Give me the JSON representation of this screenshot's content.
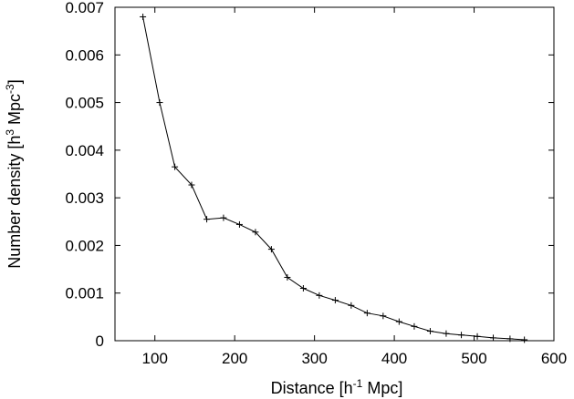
{
  "chart_data": {
    "type": "line",
    "title": "",
    "xlabel": {
      "pre": "Distance [h",
      "sup": "-1",
      "post": " Mpc]"
    },
    "ylabel": {
      "pre": "Number density [h",
      "sup1": "3",
      "mid": " Mpc",
      "sup2": "-3",
      "post": "]"
    },
    "xlim": [
      50,
      600
    ],
    "ylim": [
      0,
      0.007
    ],
    "xticks": [
      100,
      200,
      300,
      400,
      500,
      600
    ],
    "xtick_labels": [
      "100",
      "200",
      "300",
      "400",
      "500",
      "600"
    ],
    "yticks": [
      0,
      0.001,
      0.002,
      0.003,
      0.004,
      0.005,
      0.006,
      0.007
    ],
    "ytick_labels": [
      "0",
      "0.001",
      "0.002",
      "0.003",
      "0.004",
      "0.005",
      "0.006",
      "0.007"
    ],
    "grid": false,
    "legend": false,
    "line_color": "#000000",
    "marker": "plus",
    "series": [
      {
        "x": [
          85,
          106,
          125,
          146,
          165,
          186,
          206,
          226,
          246,
          266,
          286,
          306,
          326,
          346,
          366,
          386,
          406,
          425,
          445,
          465,
          484,
          504,
          524,
          545,
          563
        ],
        "y": [
          0.0068,
          0.005,
          0.00365,
          0.00327,
          0.00255,
          0.00258,
          0.00244,
          0.00228,
          0.00192,
          0.00133,
          0.0011,
          0.00095,
          0.00085,
          0.00074,
          0.00058,
          0.00052,
          0.0004,
          0.0003,
          0.0002,
          0.00015,
          0.00012,
          9e-05,
          6e-05,
          4e-05,
          2e-05
        ]
      }
    ]
  }
}
